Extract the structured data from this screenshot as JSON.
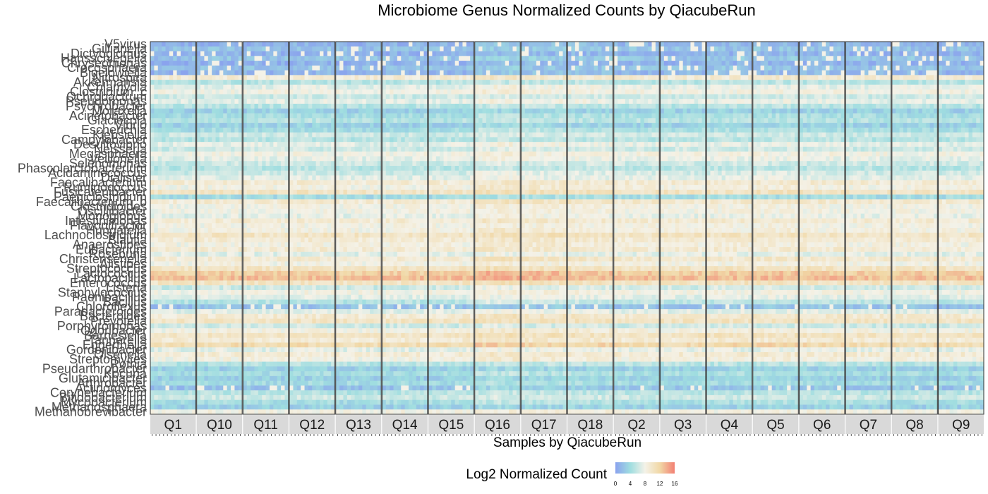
{
  "chart_data": {
    "type": "heatmap",
    "title": "Microbiome Genus Normalized Counts by QiacubeRun",
    "xlabel": "Samples by QiacubeRun",
    "ylabel": "",
    "legend": {
      "title": "Log2 Normalized Count",
      "position": "bottom",
      "ticks": [
        0,
        4,
        8,
        12,
        16
      ],
      "range": [
        0,
        16
      ],
      "colors": [
        "#8aa2ee",
        "#9fdde0",
        "#f4f2e8",
        "#f1d8a6",
        "#f27f73"
      ]
    },
    "grid": false,
    "facets": [
      "Q1",
      "Q10",
      "Q11",
      "Q12",
      "Q13",
      "Q14",
      "Q15",
      "Q16",
      "Q17",
      "Q18",
      "Q2",
      "Q3",
      "Q4",
      "Q5",
      "Q6",
      "Q7",
      "Q8",
      "Q9"
    ],
    "genera": [
      "V5virus",
      "Gillianella",
      "Dictyoglomus",
      "Hansschlegelia",
      "Chryseomonas",
      "Crocosphaera",
      "Bigelowiella",
      "Nitrospira",
      "Akkermansia",
      "Chlamydia",
      "Clostridium_c",
      "Ochrobactrum",
      "Pseudomonas",
      "Psychrobacter",
      "Moraxella",
      "Acinetobacter",
      "Glaciecola",
      "Vibrio",
      "Escherichia",
      "Klebsiella",
      "Campylobacter",
      "Desulfovibrio",
      "Neisseria",
      "Megasphaera",
      "Veillonella",
      "Selenomonas",
      "Phascolarctobacterium",
      "Acidaminococcus",
      "Dialister",
      "Faecalibacterium",
      "Ruminococcus",
      "Fusicatenibacter",
      "Paeniclostridium",
      "Faecalibacterium_b",
      "Clostridioides",
      "Oscillibacter",
      "Monoglobus",
      "Intestinimonas",
      "Flavonifractor",
      "Hungatella",
      "Lachnoclostridium",
      "Blautia",
      "Anaerostipes",
      "Eubacterium",
      "Roseburia",
      "Christensenella",
      "Alistipes",
      "Streptococcus",
      "Lactococcus",
      "Lactobacillus",
      "Enterococcus",
      "Listeria",
      "Staphylococcus",
      "Paenibacillus",
      "Bacillus",
      "Chloroflexus",
      "Parabacteroides",
      "Bacteroides",
      "Prevotella",
      "Porphyromonas",
      "Odoribacter",
      "Barnesiella",
      "Tannerella",
      "Eggerthella",
      "Gordonibacter",
      "Olsenella",
      "Streptomyces",
      "Rothia",
      "Pseudarthrobacter",
      "Kocuria",
      "Glutamicibacter",
      "Arthrobacter",
      "Actinomyces",
      "Corynebacterium",
      "Bifidobacterium",
      "Mycobacterium",
      "Methanosphaera",
      "Methanobrevibacter"
    ],
    "genus_mean_log2": [
      1,
      2,
      1,
      2,
      1,
      2,
      1,
      9,
      5,
      7,
      8,
      6,
      7,
      5,
      3,
      4,
      5,
      3,
      4,
      6,
      5,
      7,
      6,
      8,
      7,
      6,
      5,
      6,
      7,
      9,
      8,
      10,
      4,
      9,
      8,
      8,
      7,
      9,
      8,
      8,
      10,
      9,
      8,
      9,
      7,
      9,
      8,
      10,
      12,
      13,
      10,
      6,
      8,
      7,
      5,
      2,
      7,
      9,
      10,
      6,
      8,
      10,
      9,
      11,
      7,
      9,
      8,
      5,
      3,
      4,
      3,
      4,
      2,
      5,
      6,
      4,
      3,
      8
    ],
    "facet_offsets": [
      0,
      0.3,
      0.2,
      0.4,
      0.1,
      0.2,
      0.3,
      1.6,
      1.2,
      0.9,
      0.5,
      0.4,
      0.6,
      0.8,
      0.5,
      0.3,
      0.4,
      0.2
    ],
    "samples_per_facet": 12
  }
}
